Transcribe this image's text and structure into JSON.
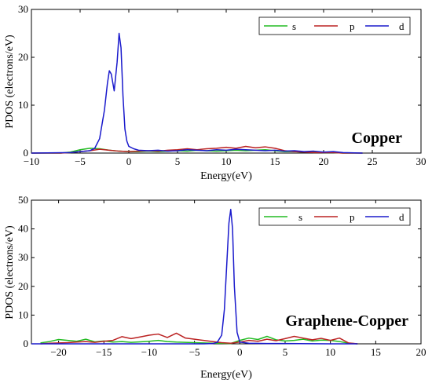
{
  "chart_data": [
    {
      "type": "line",
      "annotation": "Copper",
      "xlabel": "Energy(eV)",
      "ylabel": "PDOS (electrons/eV)",
      "xlim": [
        -10,
        30
      ],
      "ylim": [
        0,
        30
      ],
      "xticks": [
        -10,
        -5,
        0,
        5,
        10,
        15,
        20,
        25,
        30
      ],
      "yticks": [
        0,
        10,
        20,
        30
      ],
      "grid": false,
      "legend": "top-right",
      "series": [
        {
          "name": "s",
          "color": "#22bb22",
          "x": [
            -10,
            -7,
            -6,
            -5,
            -4,
            -3,
            -2,
            -1,
            0,
            1,
            2,
            3,
            4,
            5,
            6,
            7,
            8,
            9,
            10,
            11,
            12,
            13,
            14,
            15,
            16,
            17,
            18,
            19,
            20,
            21,
            22,
            23,
            24
          ],
          "y": [
            0,
            0,
            0.2,
            0.7,
            1.0,
            0.9,
            0.6,
            0.4,
            0.3,
            0.3,
            0.4,
            0.3,
            0.4,
            0.5,
            0.4,
            0.6,
            0.5,
            0.4,
            0.5,
            0.6,
            0.5,
            0.6,
            0.7,
            0.5,
            0.3,
            0.3,
            0.2,
            0.2,
            0.1,
            0.1,
            0,
            0,
            0
          ]
        },
        {
          "name": "p",
          "color": "#bb2222",
          "x": [
            -10,
            -7,
            -6,
            -5,
            -4,
            -3,
            -2,
            -1,
            0,
            1,
            2,
            3,
            4,
            5,
            6,
            7,
            8,
            9,
            10,
            11,
            12,
            13,
            14,
            15,
            16,
            17,
            18,
            19,
            20,
            21,
            22,
            23,
            24
          ],
          "y": [
            0,
            0,
            0.1,
            0.3,
            0.5,
            0.8,
            0.6,
            0.4,
            0.3,
            0.4,
            0.5,
            0.4,
            0.6,
            0.7,
            0.9,
            0.7,
            0.9,
            1.0,
            1.2,
            1.0,
            1.4,
            1.1,
            1.3,
            1.0,
            0.5,
            0.3,
            0.2,
            0.1,
            0.1,
            0.1,
            0,
            0,
            0
          ]
        },
        {
          "name": "d",
          "color": "#1a1acc",
          "x": [
            -10,
            -6,
            -5,
            -4,
            -3.5,
            -3,
            -2.5,
            -2.2,
            -2,
            -1.8,
            -1.5,
            -1.2,
            -1,
            -0.8,
            -0.6,
            -0.4,
            -0.2,
            0,
            0.5,
            1,
            2,
            3,
            4,
            5,
            6,
            7,
            8,
            9,
            10,
            11,
            12,
            13,
            14,
            15,
            16,
            17,
            18,
            19,
            20,
            21,
            22,
            24
          ],
          "y": [
            0,
            0.1,
            0.3,
            0.5,
            1.0,
            3.0,
            9.0,
            14.5,
            17.2,
            16.5,
            13.0,
            19.0,
            25.0,
            22.0,
            12.0,
            5.0,
            2.5,
            1.4,
            0.9,
            0.6,
            0.5,
            0.6,
            0.4,
            0.5,
            0.7,
            0.6,
            0.5,
            0.7,
            0.6,
            0.8,
            0.7,
            0.6,
            0.5,
            0.6,
            0.4,
            0.5,
            0.3,
            0.4,
            0.2,
            0.3,
            0.1,
            0
          ]
        }
      ]
    },
    {
      "type": "line",
      "annotation": "Graphene-Copper",
      "xlabel": "Energy(eV)",
      "ylabel": "PDOS (electrons/eV)",
      "xlim": [
        -23,
        20
      ],
      "ylim": [
        0,
        50
      ],
      "xticks": [
        -20,
        -15,
        -10,
        -5,
        0,
        5,
        10,
        15,
        20
      ],
      "yticks": [
        0,
        10,
        20,
        30,
        40,
        50
      ],
      "grid": false,
      "legend": "top-right",
      "series": [
        {
          "name": "s",
          "color": "#22bb22",
          "x": [
            -22,
            -21,
            -20,
            -19,
            -18,
            -17,
            -16,
            -15,
            -14,
            -13,
            -12,
            -11,
            -10,
            -9,
            -8,
            -7,
            -6,
            -5,
            -4,
            -3,
            -2,
            -1,
            0,
            1,
            2,
            3,
            4,
            5,
            6,
            7,
            8,
            9,
            10,
            11,
            12,
            13
          ],
          "y": [
            0.3,
            0.8,
            1.5,
            1.2,
            0.9,
            1.6,
            0.7,
            1.0,
            0.6,
            0.8,
            0.5,
            0.7,
            0.9,
            1.2,
            0.8,
            0.6,
            0.5,
            0.4,
            0.3,
            0.2,
            0.2,
            0.1,
            1.2,
            2.0,
            1.5,
            2.6,
            1.4,
            1.0,
            1.2,
            1.6,
            1.0,
            1.3,
            1.2,
            0.8,
            0.2,
            0
          ]
        },
        {
          "name": "p",
          "color": "#bb2222",
          "x": [
            -22,
            -21,
            -20,
            -19,
            -18,
            -17,
            -16,
            -15,
            -14,
            -13,
            -12,
            -11,
            -10,
            -9,
            -8,
            -7,
            -6,
            -5,
            -4,
            -3,
            -2,
            -1,
            0,
            1,
            2,
            3,
            4,
            5,
            6,
            7,
            8,
            9,
            10,
            11,
            12,
            13
          ],
          "y": [
            0,
            0.2,
            0.3,
            0.4,
            0.6,
            0.8,
            0.5,
            0.9,
            1.2,
            2.5,
            1.8,
            2.4,
            3.0,
            3.4,
            2.2,
            3.7,
            2.0,
            1.6,
            1.2,
            0.8,
            0.4,
            0.2,
            0.6,
            1.2,
            0.9,
            1.6,
            1.1,
            1.8,
            2.6,
            2.0,
            1.4,
            1.9,
            1.2,
            2.0,
            0.3,
            0
          ]
        },
        {
          "name": "d",
          "color": "#1a1acc",
          "x": [
            -23,
            -4,
            -3,
            -2.5,
            -2,
            -1.7,
            -1.4,
            -1.2,
            -1.0,
            -0.8,
            -0.6,
            -0.3,
            0,
            1,
            3,
            5,
            10,
            13
          ],
          "y": [
            0,
            0,
            0.1,
            0.5,
            3.0,
            12.0,
            30.0,
            42.0,
            46.8,
            40.0,
            20.0,
            4.0,
            0.6,
            0.2,
            0.1,
            0.1,
            0,
            0
          ]
        }
      ]
    }
  ]
}
